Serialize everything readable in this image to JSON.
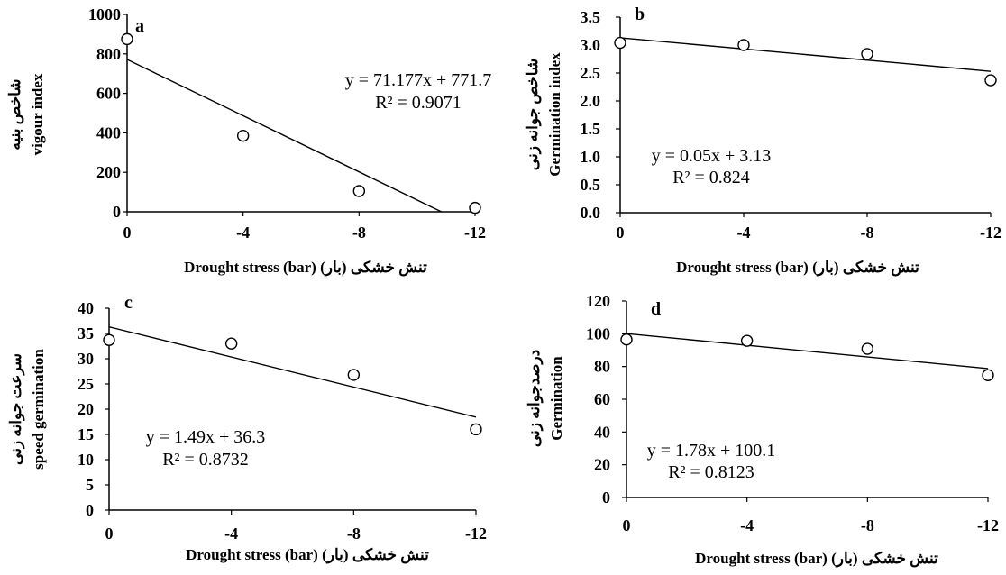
{
  "chart_data": [
    {
      "type": "scatter",
      "panel": "a",
      "xlabel": "Drought stress (bar)  (بار) تنش خشکی",
      "ylabel_fa": "شاخص بنیه",
      "ylabel_en": "vigour index",
      "x_ticks": [
        "0",
        "-4",
        "-8",
        "-12"
      ],
      "y_ticks": [
        "0",
        "200",
        "400",
        "600",
        "800",
        "1000"
      ],
      "xlim": [
        0,
        -12
      ],
      "ylim": [
        0,
        1000
      ],
      "x": [
        0,
        -4,
        -8,
        -12
      ],
      "y": [
        875,
        385,
        105,
        20
      ],
      "trendline": {
        "slope": 71.177,
        "intercept": 771.7,
        "x_end": -10.84
      },
      "equation": "y = 71.177x + 771.7",
      "r2": "R² = 0.9071"
    },
    {
      "type": "scatter",
      "panel": "b",
      "xlabel": "Drought stress (bar)  (بار) تنش خشکی",
      "ylabel_fa": "شاخص جوانه زنی",
      "ylabel_en": "Germination index",
      "x_ticks": [
        "0",
        "-4",
        "-8",
        "-12"
      ],
      "y_ticks": [
        "0.0",
        "0.5",
        "1.0",
        "1.5",
        "2.0",
        "2.5",
        "3.0",
        "3.5"
      ],
      "xlim": [
        0,
        -12
      ],
      "ylim": [
        0,
        3.5
      ],
      "x": [
        0,
        -4,
        -8,
        -12
      ],
      "y": [
        3.04,
        3.0,
        2.84,
        2.37
      ],
      "trendline": {
        "slope": 0.05,
        "intercept": 3.13,
        "x_end": -12
      },
      "equation": "y = 0.05x + 3.13",
      "r2": "R² = 0.824"
    },
    {
      "type": "scatter",
      "panel": "c",
      "xlabel": "Drought stress (bar)  (بار) تنش خشکی",
      "ylabel_fa": "سرعت جوانه زنی",
      "ylabel_en": "speed germination",
      "x_ticks": [
        "0",
        "-4",
        "-8",
        "-12"
      ],
      "y_ticks": [
        "0",
        "5",
        "10",
        "15",
        "20",
        "25",
        "30",
        "35",
        "40"
      ],
      "xlim": [
        0,
        -12
      ],
      "ylim": [
        0,
        40
      ],
      "x": [
        0,
        -4,
        -8,
        -12
      ],
      "y": [
        33.7,
        33.0,
        26.8,
        16.0
      ],
      "trendline": {
        "slope": 1.49,
        "intercept": 36.3,
        "x_end": -12
      },
      "equation": "y = 1.49x + 36.3",
      "r2": "R² = 0.8732"
    },
    {
      "type": "scatter",
      "panel": "d",
      "xlabel": "Drought stress (bar)  (بار) تنش خشکی",
      "ylabel_fa": "درصدجوانه زنی",
      "ylabel_en": "Germination",
      "x_ticks": [
        "0",
        "-4",
        "-8",
        "-12"
      ],
      "y_ticks": [
        "0",
        "20",
        "40",
        "60",
        "80",
        "100",
        "120"
      ],
      "xlim": [
        0,
        -12
      ],
      "ylim": [
        0,
        120
      ],
      "x": [
        0,
        -4,
        -8,
        -12
      ],
      "y": [
        96.5,
        95.7,
        90.8,
        74.7
      ],
      "trendline": {
        "slope": 1.78,
        "intercept": 100.1,
        "x_end": -12
      },
      "equation": "y = 1.78x + 100.1",
      "r2": "R² = 0.8123"
    }
  ]
}
